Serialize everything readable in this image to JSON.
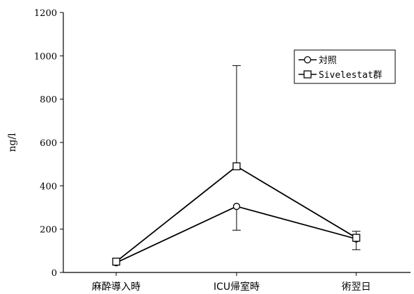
{
  "chart_data": {
    "type": "line",
    "title": "",
    "xlabel": "",
    "ylabel": "ng/l",
    "ylim": [
      0,
      1200
    ],
    "yticks": [
      0,
      200,
      400,
      600,
      800,
      1000,
      1200
    ],
    "categories": [
      "麻酔導入時",
      "ICU帰室時",
      "術翌日"
    ],
    "grid": false,
    "legend_position": "top-right",
    "series": [
      {
        "name": "対照",
        "marker": "circle",
        "values": [
          45,
          305,
          155
        ],
        "error_lower": [
          0,
          110,
          50
        ],
        "error_upper": [
          0,
          0,
          0
        ]
      },
      {
        "name": "Sivelestat群",
        "marker": "square",
        "values": [
          50,
          490,
          160
        ],
        "error_lower": [
          0,
          0,
          0
        ],
        "error_upper": [
          0,
          465,
          30
        ]
      }
    ]
  }
}
